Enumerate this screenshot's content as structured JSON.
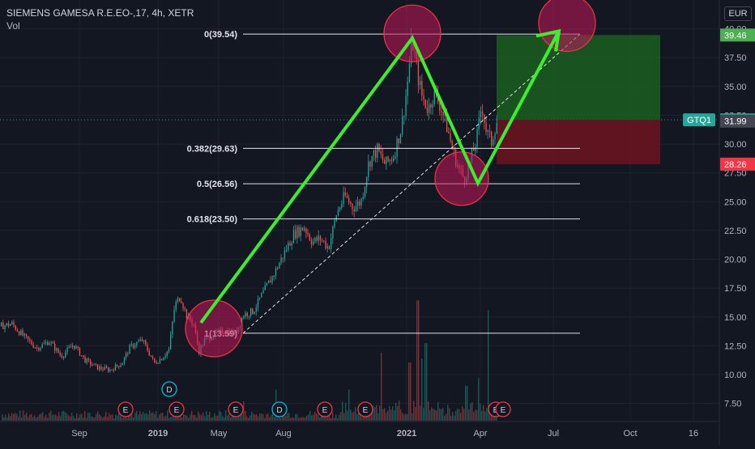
{
  "header": {
    "symbol_line": "SIEMENS GAMESA R.E.EO-,17, 4h, XETR",
    "volume_label": "Vol",
    "currency": "EUR"
  },
  "chart_data": {
    "type": "candlestick",
    "symbol": "SIEMENS GAMESA R.E.EO-,17",
    "interval": "4h",
    "exchange": "XETR",
    "currency": "EUR",
    "ylim": [
      6.0,
      42.5
    ],
    "y_ticks": [
      "7.50",
      "10.00",
      "12.50",
      "15.00",
      "17.50",
      "20.00",
      "22.50",
      "25.00",
      "27.50",
      "30.00",
      "32.50",
      "35.00",
      "37.50",
      "40.00"
    ],
    "x_ticks": [
      "Sep",
      "2019",
      "May",
      "Aug",
      "2021",
      "Apr",
      "Jul",
      "Oct",
      "16"
    ],
    "price_path": [
      {
        "x": 0,
        "y": 14.2
      },
      {
        "x": 14,
        "y": 14.4
      },
      {
        "x": 30,
        "y": 13.2
      },
      {
        "x": 45,
        "y": 12.3
      },
      {
        "x": 60,
        "y": 12.9
      },
      {
        "x": 75,
        "y": 11.6
      },
      {
        "x": 90,
        "y": 12.6
      },
      {
        "x": 105,
        "y": 11.2
      },
      {
        "x": 120,
        "y": 10.6
      },
      {
        "x": 135,
        "y": 10.4
      },
      {
        "x": 150,
        "y": 11.0
      },
      {
        "x": 160,
        "y": 12.4
      },
      {
        "x": 175,
        "y": 13.0
      },
      {
        "x": 190,
        "y": 11.0
      },
      {
        "x": 200,
        "y": 11.5
      },
      {
        "x": 208,
        "y": 12.2
      },
      {
        "x": 215,
        "y": 16.0
      },
      {
        "x": 222,
        "y": 16.8
      },
      {
        "x": 230,
        "y": 15.0
      },
      {
        "x": 238,
        "y": 14.5
      },
      {
        "x": 245,
        "y": 12.0
      },
      {
        "x": 252,
        "y": 13.0
      },
      {
        "x": 262,
        "y": 13.4
      },
      {
        "x": 275,
        "y": 13.8
      },
      {
        "x": 290,
        "y": 13.6
      },
      {
        "x": 300,
        "y": 15.2
      },
      {
        "x": 312,
        "y": 15.5
      },
      {
        "x": 325,
        "y": 17.2
      },
      {
        "x": 338,
        "y": 18.8
      },
      {
        "x": 350,
        "y": 20.5
      },
      {
        "x": 362,
        "y": 22.2
      },
      {
        "x": 375,
        "y": 22.8
      },
      {
        "x": 385,
        "y": 21.5
      },
      {
        "x": 395,
        "y": 21.8
      },
      {
        "x": 405,
        "y": 21.0
      },
      {
        "x": 415,
        "y": 24.0
      },
      {
        "x": 425,
        "y": 25.5
      },
      {
        "x": 435,
        "y": 24.5
      },
      {
        "x": 445,
        "y": 25.0
      },
      {
        "x": 455,
        "y": 28.5
      },
      {
        "x": 465,
        "y": 29.5
      },
      {
        "x": 475,
        "y": 28.2
      },
      {
        "x": 485,
        "y": 29.0
      },
      {
        "x": 495,
        "y": 31.5
      },
      {
        "x": 502,
        "y": 35.0
      },
      {
        "x": 508,
        "y": 39.2
      },
      {
        "x": 515,
        "y": 36.0
      },
      {
        "x": 520,
        "y": 34.2
      },
      {
        "x": 528,
        "y": 33.0
      },
      {
        "x": 535,
        "y": 34.5
      },
      {
        "x": 542,
        "y": 33.5
      },
      {
        "x": 550,
        "y": 31.8
      },
      {
        "x": 558,
        "y": 29.5
      },
      {
        "x": 565,
        "y": 28.0
      },
      {
        "x": 572,
        "y": 27.0
      },
      {
        "x": 580,
        "y": 28.5
      },
      {
        "x": 588,
        "y": 30.5
      },
      {
        "x": 594,
        "y": 33.5
      },
      {
        "x": 600,
        "y": 31.0
      },
      {
        "x": 606,
        "y": 30.2
      },
      {
        "x": 612,
        "y": 32.0
      }
    ],
    "volume_spikes": [
      {
        "x": 515,
        "y": 0.62
      },
      {
        "x": 505,
        "y": 0.3
      },
      {
        "x": 520,
        "y": 0.32
      },
      {
        "x": 525,
        "y": 0.4
      },
      {
        "x": 602,
        "y": 0.57
      },
      {
        "x": 590,
        "y": 0.22
      },
      {
        "x": 575,
        "y": 0.18
      },
      {
        "x": 470,
        "y": 0.35
      },
      {
        "x": 430,
        "y": 0.16
      },
      {
        "x": 340,
        "y": 0.16
      },
      {
        "x": 300,
        "y": 0.1
      }
    ],
    "fibonacci_retracement": {
      "levels": [
        {
          "label": "0(39.54)",
          "value": 39.54
        },
        {
          "label": "0.382(29.63)",
          "value": 29.63
        },
        {
          "label": "0.5(26.56)",
          "value": 26.56
        },
        {
          "label": "0.618(23.50)",
          "value": 23.5
        },
        {
          "label": "1(13.59)",
          "value": 13.59
        }
      ]
    },
    "position_tool": {
      "target": 39.46,
      "entry": 32.1,
      "stop": 28.26,
      "entry_label": "GTQ1"
    },
    "price_labels": [
      {
        "text": "39.46",
        "value": 39.46,
        "color": "#4caf50"
      },
      {
        "text": "32.10",
        "value": 32.1,
        "color": "#26a69a"
      },
      {
        "text": "31.99",
        "value": 31.99,
        "color": "#434651"
      },
      {
        "text": "28.26",
        "value": 28.26,
        "color": "#f23645"
      }
    ],
    "event_markers": [
      {
        "kind": "E",
        "row": "bottom"
      },
      {
        "kind": "E",
        "row": "bottom"
      },
      {
        "kind": "E",
        "row": "bottom"
      },
      {
        "kind": "E",
        "row": "bottom"
      },
      {
        "kind": "E",
        "row": "bottom"
      },
      {
        "kind": "E",
        "row": "bottom"
      },
      {
        "kind": "E",
        "row": "bottom"
      },
      {
        "kind": "D",
        "row": "upper"
      },
      {
        "kind": "D",
        "row": "bottom"
      }
    ],
    "colors": {
      "background": "#131722",
      "up": "#26a69a",
      "down": "#ef5350",
      "arrow": "#3cee2b",
      "circle_fill": "#c2185b",
      "circle_stroke": "#f23645",
      "target_zone": "#1b5e20",
      "stop_zone": "#6d1420"
    }
  }
}
